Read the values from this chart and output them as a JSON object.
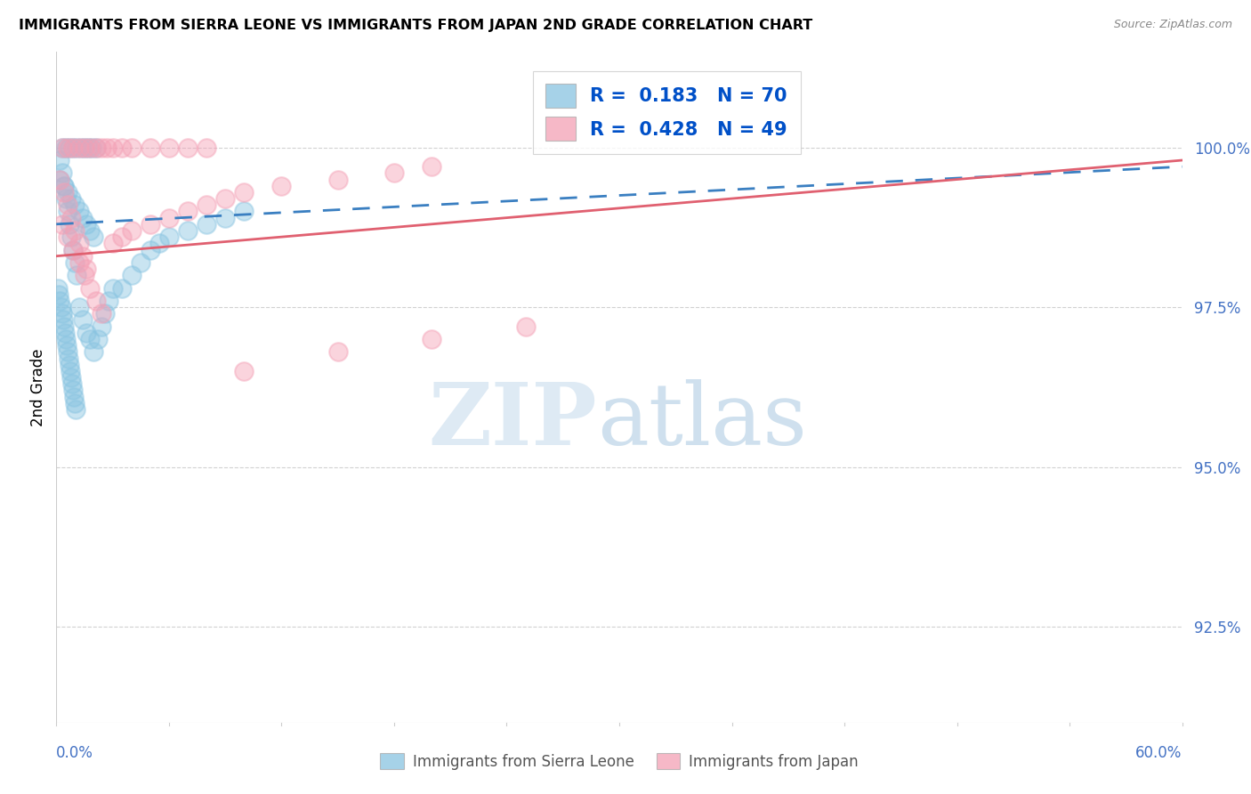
{
  "title": "IMMIGRANTS FROM SIERRA LEONE VS IMMIGRANTS FROM JAPAN 2ND GRADE CORRELATION CHART",
  "source": "Source: ZipAtlas.com",
  "ylabel": "2nd Grade",
  "y_ticks": [
    92.5,
    95.0,
    97.5,
    100.0
  ],
  "y_tick_labels": [
    "92.5%",
    "95.0%",
    "97.5%",
    "100.0%"
  ],
  "xlim": [
    0.0,
    60.0
  ],
  "ylim": [
    91.0,
    101.5
  ],
  "r_sierra": 0.183,
  "n_sierra": 70,
  "r_japan": 0.428,
  "n_japan": 49,
  "color_sierra": "#89C4E1",
  "color_japan": "#F4A0B5",
  "trendline_sierra_color": "#3A7FC1",
  "trendline_japan_color": "#E06070",
  "bg_color": "#FFFFFF",
  "grid_color": "#CCCCCC",
  "tick_label_color": "#4472C4",
  "title_fontsize": 11.5,
  "source_fontsize": 9,
  "ylabel_fontsize": 12,
  "legend_text_color": "#1A1A1A",
  "legend_value_color": "#0050C8",
  "bottom_legend_color": "#555555",
  "watermark_zip_color": "#C8DCEE",
  "watermark_atlas_color": "#A8C8E0",
  "sierra_leone_x": [
    0.3,
    0.5,
    0.7,
    0.9,
    1.1,
    1.3,
    1.5,
    1.7,
    1.9,
    2.1,
    0.2,
    0.4,
    0.6,
    0.8,
    1.0,
    1.2,
    1.4,
    1.6,
    1.8,
    2.0,
    0.2,
    0.3,
    0.4,
    0.5,
    0.6,
    0.7,
    0.8,
    0.9,
    1.0,
    1.1,
    0.1,
    0.15,
    0.2,
    0.25,
    0.3,
    0.35,
    0.4,
    0.45,
    0.5,
    0.55,
    0.6,
    0.65,
    0.7,
    0.75,
    0.8,
    0.85,
    0.9,
    0.95,
    1.0,
    1.05,
    1.2,
    1.4,
    1.6,
    1.8,
    2.0,
    2.2,
    2.4,
    2.6,
    2.8,
    3.0,
    3.5,
    4.0,
    4.5,
    5.0,
    5.5,
    6.0,
    7.0,
    8.0,
    9.0,
    10.0
  ],
  "sierra_leone_y": [
    100.0,
    100.0,
    100.0,
    100.0,
    100.0,
    100.0,
    100.0,
    100.0,
    100.0,
    100.0,
    99.5,
    99.4,
    99.3,
    99.2,
    99.1,
    99.0,
    98.9,
    98.8,
    98.7,
    98.6,
    99.8,
    99.6,
    99.4,
    99.2,
    99.0,
    98.8,
    98.6,
    98.4,
    98.2,
    98.0,
    97.8,
    97.7,
    97.6,
    97.5,
    97.4,
    97.3,
    97.2,
    97.1,
    97.0,
    96.9,
    96.8,
    96.7,
    96.6,
    96.5,
    96.4,
    96.3,
    96.2,
    96.1,
    96.0,
    95.9,
    97.5,
    97.3,
    97.1,
    97.0,
    96.8,
    97.0,
    97.2,
    97.4,
    97.6,
    97.8,
    97.8,
    98.0,
    98.2,
    98.4,
    98.5,
    98.6,
    98.7,
    98.8,
    98.9,
    99.0
  ],
  "japan_x": [
    0.3,
    0.6,
    0.9,
    1.2,
    1.5,
    1.8,
    2.1,
    2.4,
    2.7,
    3.0,
    3.5,
    4.0,
    5.0,
    6.0,
    7.0,
    8.0,
    0.2,
    0.4,
    0.6,
    0.8,
    1.0,
    1.2,
    1.4,
    1.6,
    0.3,
    0.6,
    0.9,
    1.2,
    1.5,
    1.8,
    2.1,
    2.4,
    3.0,
    3.5,
    4.0,
    5.0,
    6.0,
    7.0,
    8.0,
    9.0,
    10.0,
    12.0,
    15.0,
    18.0,
    20.0,
    10.0,
    15.0,
    20.0,
    25.0
  ],
  "japan_y": [
    100.0,
    100.0,
    100.0,
    100.0,
    100.0,
    100.0,
    100.0,
    100.0,
    100.0,
    100.0,
    100.0,
    100.0,
    100.0,
    100.0,
    100.0,
    100.0,
    99.5,
    99.3,
    99.1,
    98.9,
    98.7,
    98.5,
    98.3,
    98.1,
    98.8,
    98.6,
    98.4,
    98.2,
    98.0,
    97.8,
    97.6,
    97.4,
    98.5,
    98.6,
    98.7,
    98.8,
    98.9,
    99.0,
    99.1,
    99.2,
    99.3,
    99.4,
    99.5,
    99.6,
    99.7,
    96.5,
    96.8,
    97.0,
    97.2
  ]
}
